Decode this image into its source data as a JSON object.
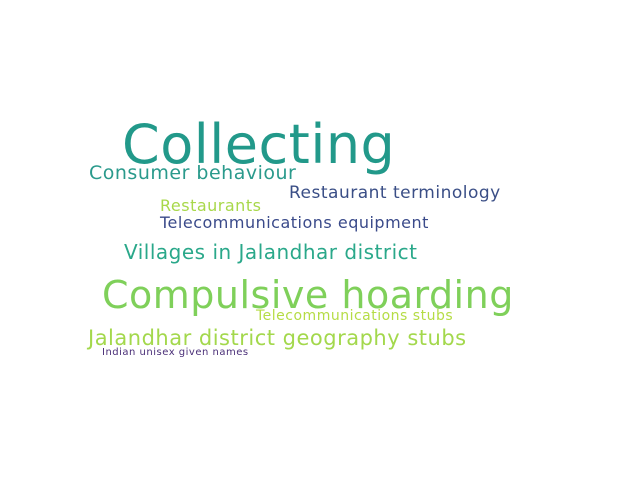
{
  "word_cloud": {
    "words": [
      {
        "text": "Collecting",
        "color": "#22998a"
      },
      {
        "text": "Consumer behaviour",
        "color": "#2a9a8c"
      },
      {
        "text": "Restaurant terminology",
        "color": "#3a4e86"
      },
      {
        "text": "Restaurants",
        "color": "#a8d84a"
      },
      {
        "text": "Telecommunications equipment",
        "color": "#3a4a8a"
      },
      {
        "text": "Villages in Jalandhar district",
        "color": "#2aa88a"
      },
      {
        "text": "Compulsive hoarding",
        "color": "#7fd05a"
      },
      {
        "text": "Telecommunications stubs",
        "color": "#b5dc45"
      },
      {
        "text": "Jalandhar district geography stubs",
        "color": "#a3d84c"
      },
      {
        "text": "Indian unisex given names",
        "color": "#4a2f78"
      }
    ]
  }
}
